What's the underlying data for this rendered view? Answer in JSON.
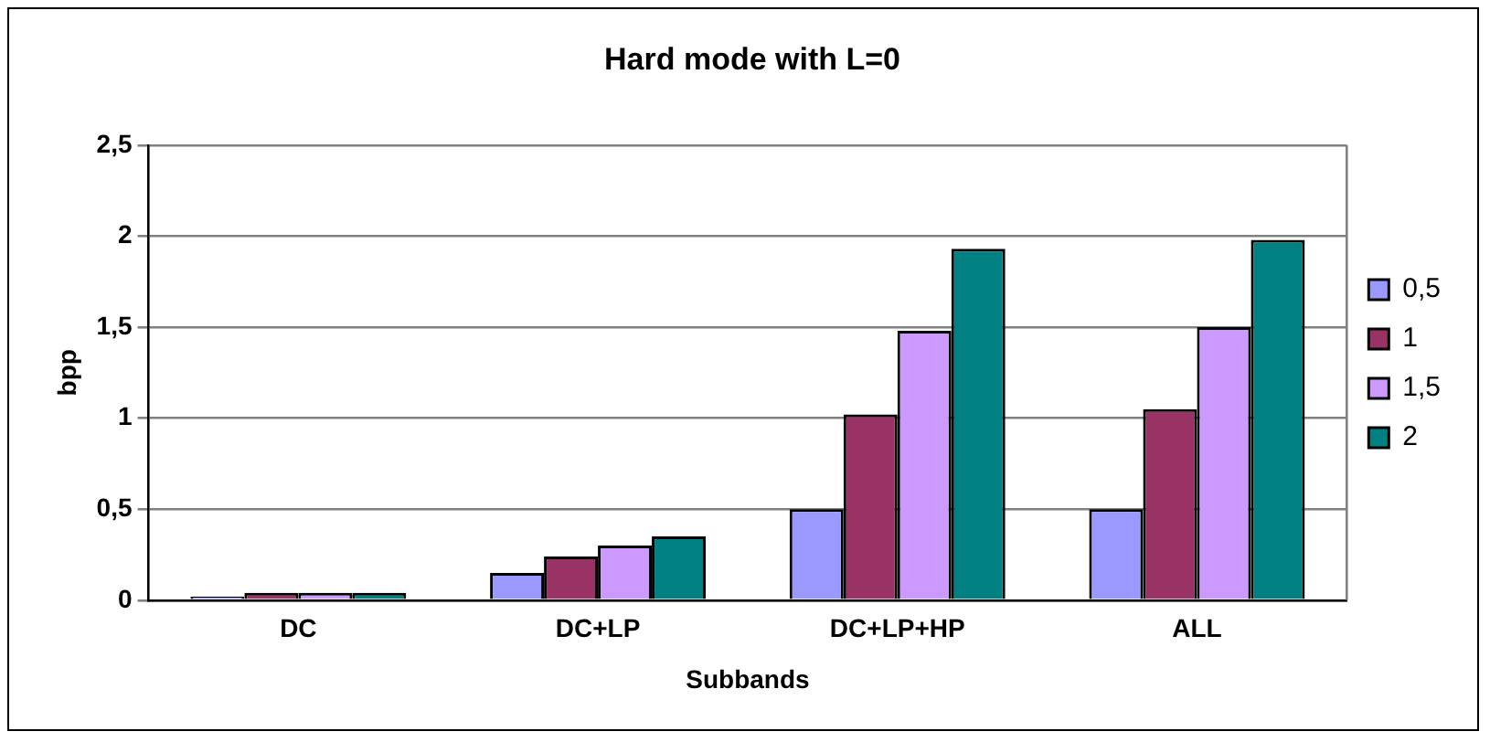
{
  "chart_data": {
    "type": "bar",
    "title": "Hard mode with L=0",
    "xlabel": "Subbands",
    "ylabel": "bpp",
    "categories": [
      "DC",
      "DC+LP",
      "DC+LP+HP",
      "ALL"
    ],
    "series": [
      {
        "name": "0,5",
        "color": "#9999ff",
        "values": [
          0.02,
          0.15,
          0.5,
          0.5
        ]
      },
      {
        "name": "1",
        "color": "#993366",
        "values": [
          0.04,
          0.24,
          1.02,
          1.05
        ]
      },
      {
        "name": "1,5",
        "color": "#cc99ff",
        "values": [
          0.04,
          0.3,
          1.48,
          1.5
        ]
      },
      {
        "name": "2",
        "color": "#008080",
        "values": [
          0.04,
          0.35,
          1.93,
          1.98
        ]
      }
    ],
    "ylim": [
      0,
      2.5
    ],
    "yticks": [
      0,
      {
        "value": 0.5,
        "label": "0,5"
      },
      1,
      {
        "value": 1.5,
        "label": "1,5"
      },
      2,
      {
        "value": 2.5,
        "label": "2,5"
      }
    ],
    "grid": "y",
    "legend": "right"
  }
}
